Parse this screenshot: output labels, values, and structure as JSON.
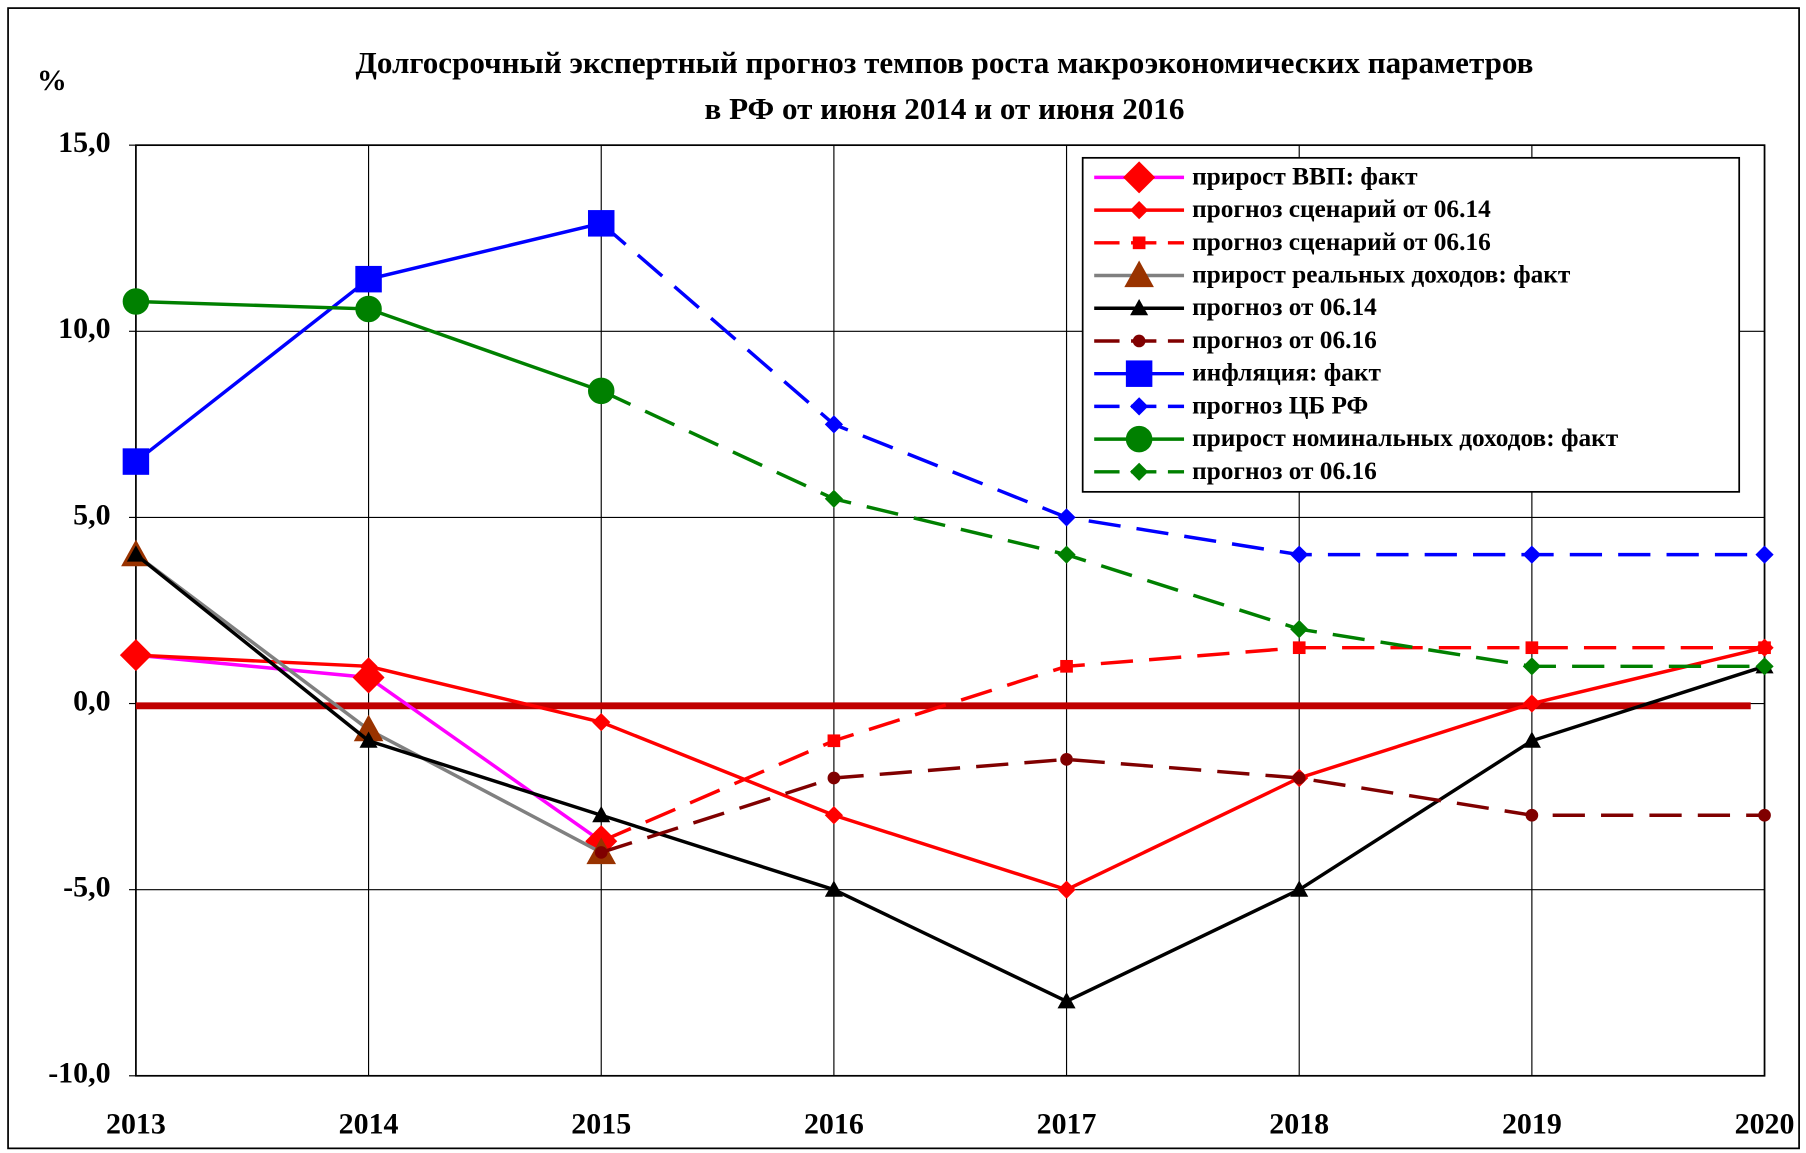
{
  "chart_data": {
    "type": "line",
    "title": [
      "Долгосрочный экспертный прогноз темпов роста макроэкономических параметров",
      "в РФ от июня 2014 и от июня 2016"
    ],
    "ylabel": "%",
    "categories": [
      "2013",
      "2014",
      "2015",
      "2016",
      "2017",
      "2018",
      "2019",
      "2020"
    ],
    "ylim": [
      -10,
      15
    ],
    "yticks": [
      {
        "value": -10,
        "label": "-10,0"
      },
      {
        "value": -5,
        "label": "-5,0"
      },
      {
        "value": 0,
        "label": "0,0"
      },
      {
        "value": 5,
        "label": "5,0"
      },
      {
        "value": 10,
        "label": "10,0"
      },
      {
        "value": 15,
        "label": "15,0"
      }
    ],
    "grid": true,
    "legend": "upper right",
    "zero_line": {
      "value": 0,
      "color": "#c00000"
    },
    "series": [
      {
        "name": "прирост ВВП: факт",
        "color": "#ff00ff",
        "marker": "diamond",
        "marker_color": "#ff0000",
        "marker_size": 11,
        "dashed": false,
        "values": [
          1.3,
          0.7,
          -3.7,
          null,
          null,
          null,
          null,
          null
        ]
      },
      {
        "name": "прогноз сценарий от 06.14",
        "color": "#ff0000",
        "marker": "diamond",
        "marker_color": "#ff0000",
        "marker_size": 6,
        "dashed": false,
        "values": [
          1.3,
          1.0,
          -0.5,
          -3.0,
          -5.0,
          -2.0,
          0.0,
          1.5
        ]
      },
      {
        "name": "прогноз сценарий от 06.16",
        "color": "#ff0000",
        "marker": "square",
        "marker_color": "#ff0000",
        "marker_size": 5,
        "dashed": true,
        "values": [
          null,
          null,
          -3.7,
          -1.0,
          1.0,
          1.5,
          1.5,
          1.5
        ]
      },
      {
        "name": "прирост реальных доходов: факт",
        "color": "#808080",
        "marker": "triangle",
        "marker_color": "#993300",
        "marker_size": 12,
        "dashed": false,
        "values": [
          4.0,
          -0.7,
          -4.0,
          null,
          null,
          null,
          null,
          null
        ]
      },
      {
        "name": "прогноз от 06.14",
        "color": "#000000",
        "marker": "triangle",
        "marker_color": "#000000",
        "marker_size": 7,
        "dashed": false,
        "values": [
          4.0,
          -1.0,
          -3.0,
          -5.0,
          -8.0,
          -5.0,
          -1.0,
          1.0
        ]
      },
      {
        "name": "прогноз от 06.16",
        "color": "#800000",
        "marker": "circle",
        "marker_color": "#800000",
        "marker_size": 5,
        "dashed": true,
        "values": [
          null,
          null,
          -4.0,
          -2.0,
          -1.5,
          -2.0,
          -3.0,
          -3.0
        ]
      },
      {
        "name": "инфляция: факт",
        "color": "#0000ff",
        "marker": "square",
        "marker_color": "#0000ff",
        "marker_size": 11,
        "dashed": false,
        "values": [
          6.5,
          11.4,
          12.9,
          null,
          null,
          null,
          null,
          null
        ]
      },
      {
        "name": "прогноз ЦБ РФ",
        "color": "#0000ff",
        "marker": "diamond",
        "marker_color": "#0000ff",
        "marker_size": 6,
        "dashed": true,
        "values": [
          null,
          null,
          12.9,
          7.5,
          5.0,
          4.0,
          4.0,
          4.0
        ]
      },
      {
        "name": "прирост номинальных доходов: факт",
        "color": "#008000",
        "marker": "circle",
        "marker_color": "#008000",
        "marker_size": 11,
        "dashed": false,
        "values": [
          10.8,
          10.6,
          8.4,
          null,
          null,
          null,
          null,
          null
        ]
      },
      {
        "name": "прогноз от 06.16",
        "color": "#008000",
        "marker": "diamond",
        "marker_color": "#008000",
        "marker_size": 6,
        "dashed": true,
        "values": [
          null,
          null,
          8.4,
          5.5,
          4.0,
          2.0,
          1.0,
          1.0
        ]
      }
    ]
  }
}
